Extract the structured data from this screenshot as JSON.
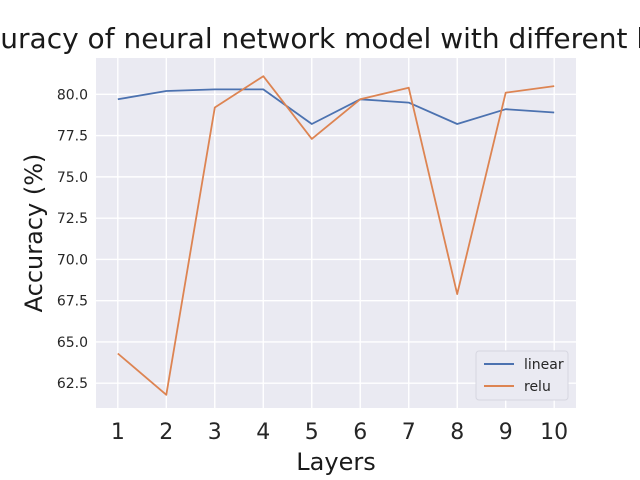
{
  "chart_data": {
    "type": "line",
    "title": "Accuracy of neural network model with different layers",
    "xlabel": "Layers",
    "ylabel": "Accuracy (%)",
    "x": [
      1,
      2,
      3,
      4,
      5,
      6,
      7,
      8,
      9,
      10
    ],
    "xlim": [
      0.55,
      10.45
    ],
    "ylim": [
      61.0,
      82.2
    ],
    "yticks": [
      62.5,
      65.0,
      67.5,
      70.0,
      72.5,
      75.0,
      77.5,
      80.0
    ],
    "ytick_labels": [
      "62.5",
      "65.0",
      "67.5",
      "70.0",
      "72.5",
      "75.0",
      "77.5",
      "80.0"
    ],
    "xtick_labels": [
      "1",
      "2",
      "3",
      "4",
      "5",
      "6",
      "7",
      "8",
      "9",
      "10"
    ],
    "grid": true,
    "legend_position": "lower right",
    "series": [
      {
        "name": "linear",
        "color": "#4c72b0",
        "values": [
          79.7,
          80.2,
          80.3,
          80.3,
          78.2,
          79.7,
          79.5,
          78.2,
          79.1,
          78.9
        ]
      },
      {
        "name": "relu",
        "color": "#dd8452",
        "values": [
          64.3,
          61.8,
          79.2,
          81.1,
          77.3,
          79.7,
          80.4,
          67.9,
          80.1,
          80.5
        ]
      }
    ],
    "plot_background": "#eaeaf2",
    "grid_color": "#ffffff"
  }
}
